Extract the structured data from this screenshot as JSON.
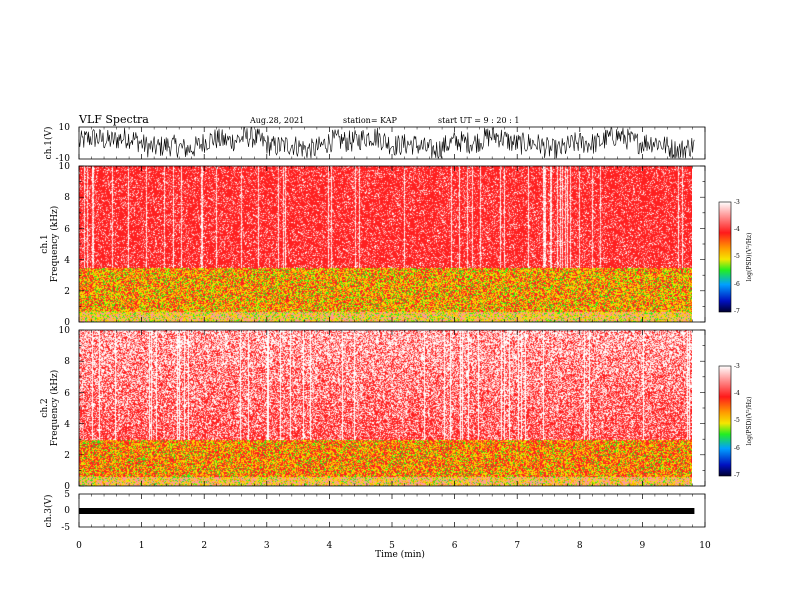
{
  "header": {
    "title": "VLF Spectra",
    "date": "Aug.28, 2021",
    "station": "station= KAP",
    "start": "start  UT =  9 : 20 : 1"
  },
  "chart_data": [
    {
      "type": "line",
      "name": "ch1-waveform",
      "ylabel": "ch.1(V)",
      "ylim": [
        -10,
        10
      ],
      "yticks": [
        "10",
        "-10"
      ],
      "x_range_min": [
        0,
        9.83
      ],
      "y_envelope": [
        -10,
        10
      ]
    },
    {
      "type": "heatmap",
      "name": "ch1-spectrogram",
      "ylabel": "ch.1\nFrequency (kHz)",
      "ylim": [
        0,
        10
      ],
      "yticks": [
        "0",
        "2",
        "4",
        "6",
        "8",
        "10"
      ],
      "x_range_min": [
        0,
        9.83
      ],
      "colorbar": {
        "label": "log(PSD)(V²/Hz)",
        "range": [
          -7,
          -3
        ],
        "ticks": [
          "-3",
          "-4",
          "-5",
          "-6",
          "-7"
        ]
      },
      "dominant_level": "red ~ -4",
      "band_kHz": [
        0,
        3.5
      ]
    },
    {
      "type": "heatmap",
      "name": "ch2-spectrogram",
      "ylabel": "ch.2\nFrequency (kHz)",
      "ylim": [
        0,
        10
      ],
      "yticks": [
        "0",
        "2",
        "4",
        "6",
        "8",
        "10"
      ],
      "x_range_min": [
        0,
        9.83
      ],
      "colorbar": {
        "label": "log(PSD)(V²/Hz)",
        "range": [
          -7,
          -3
        ],
        "ticks": [
          "-3",
          "-4",
          "-5",
          "-6",
          "-7"
        ]
      },
      "dominant_level": "pink/white ~ -3.3 above 3 kHz",
      "band_kHz": [
        0,
        3
      ]
    },
    {
      "type": "line",
      "name": "ch3-waveform",
      "ylabel": "ch.3(V)",
      "ylim": [
        -5,
        5
      ],
      "yticks": [
        "5",
        "0",
        "-5"
      ],
      "x_range_min": [
        0,
        9.83
      ],
      "y_level": -0.2
    }
  ],
  "xaxis": {
    "label": "Time (min)",
    "range": [
      0,
      10
    ],
    "ticks": [
      "0",
      "1",
      "2",
      "3",
      "4",
      "5",
      "6",
      "7",
      "8",
      "9",
      "10"
    ]
  },
  "colors": {
    "red": "#ff2020",
    "pink": "#ff9a9a",
    "yellow": "#f5e000",
    "green": "#22ee22",
    "white": "#ffffff"
  }
}
